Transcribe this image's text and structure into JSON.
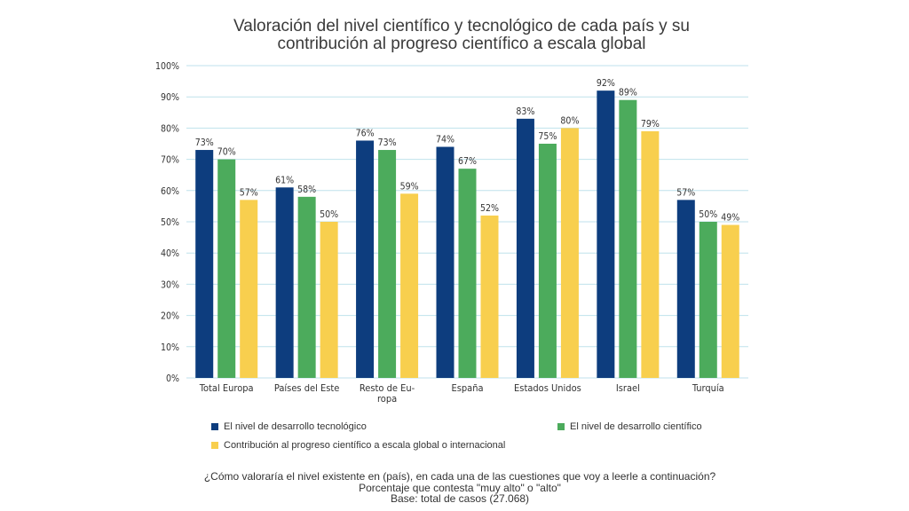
{
  "chart_data": {
    "type": "bar",
    "title_lines": [
      "Valoración del nivel científico y tecnológico de cada país y su",
      "contribución al progreso científico a escala global"
    ],
    "categories": [
      [
        "Total Europa"
      ],
      [
        "Países del Este"
      ],
      [
        "Resto de Eu-",
        "ropa"
      ],
      [
        "España"
      ],
      [
        "Estados Unidos"
      ],
      [
        "Israel"
      ],
      [
        "Turquía"
      ]
    ],
    "series": [
      {
        "name": "El nivel de desarrollo tecnológico",
        "color": "#0d3d7e",
        "values": [
          73,
          61,
          76,
          74,
          83,
          92,
          57
        ]
      },
      {
        "name": "El nivel de desarrollo científico",
        "color": "#4cab5c",
        "values": [
          70,
          58,
          73,
          67,
          75,
          89,
          50
        ]
      },
      {
        "name": "Contribución al progreso científico a escala global o internacional",
        "color": "#f8cf4e",
        "values": [
          57,
          50,
          59,
          52,
          80,
          79,
          49
        ]
      }
    ],
    "ylim": [
      0,
      100
    ],
    "yticks": [
      0,
      10,
      20,
      30,
      40,
      50,
      60,
      70,
      80,
      90,
      100
    ],
    "value_suffix": "%",
    "grid": true,
    "legend": "bottom"
  },
  "footer": {
    "line1": "¿Cómo valoraría el nivel existente en (país), en cada una de las cuestiones que voy a leerle a continuación?",
    "line2": "Porcentaje que contesta \"muy alto\" o \"alto\"",
    "line3": "Base: total de casos (27.068)"
  }
}
